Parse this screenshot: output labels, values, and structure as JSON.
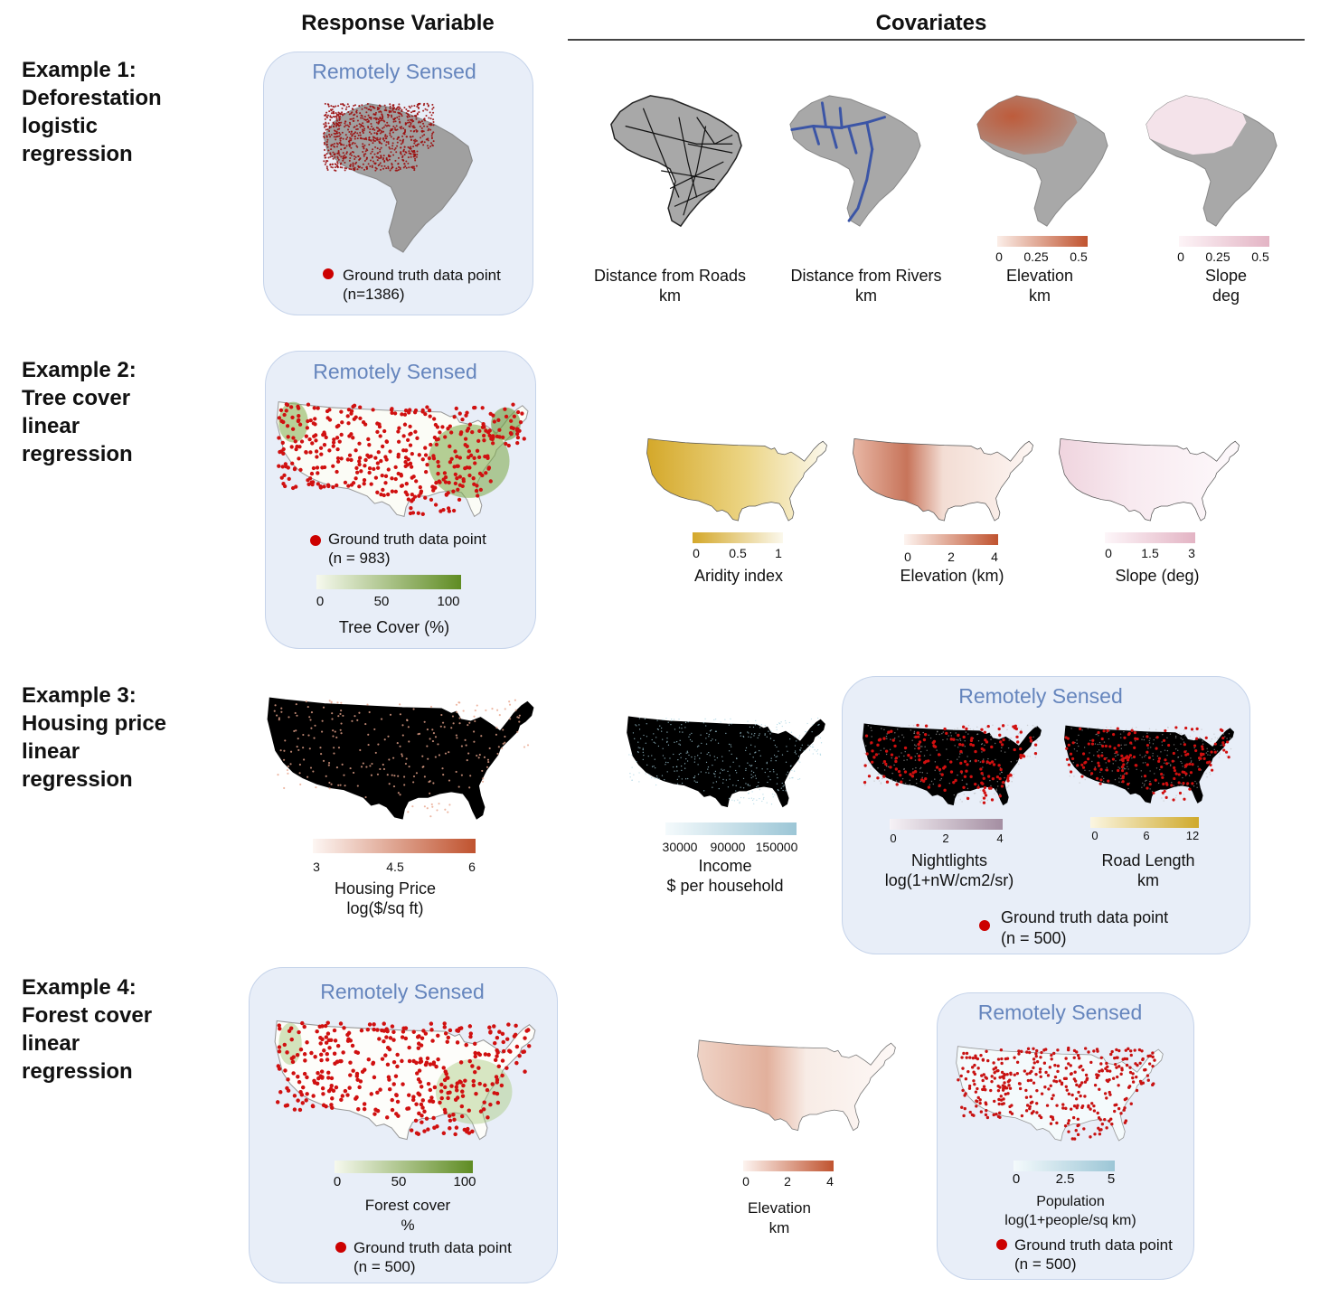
{
  "headers": {
    "response": "Response Variable",
    "covariates": "Covariates"
  },
  "remote_label": "Remotely Sensed",
  "examples": {
    "ex1": {
      "title": [
        "Example 1:",
        "Deforestation",
        "logistic",
        "regression"
      ],
      "ground_truth": {
        "label": "Ground truth data point",
        "n": "(n=1386)"
      },
      "covariates": {
        "roads": {
          "label": "Distance from Roads",
          "unit": "km"
        },
        "rivers": {
          "label": "Distance from Rivers",
          "unit": "km"
        },
        "elevation": {
          "label": "Elevation",
          "unit": "km",
          "ticks": [
            "0",
            "0.25",
            "0.5"
          ],
          "color": "#c0532f"
        },
        "slope": {
          "label": "Slope",
          "unit": "deg",
          "ticks": [
            "0",
            "0.25",
            "0.5"
          ],
          "color": "#e3b4c4"
        }
      }
    },
    "ex2": {
      "title": [
        "Example 2:",
        "Tree cover",
        "linear",
        "regression"
      ],
      "ground_truth": {
        "label": "Ground truth data point",
        "n": "(n = 983)"
      },
      "response_scale": {
        "label": "Tree Cover (%)",
        "ticks": [
          "0",
          "50",
          "100"
        ],
        "color": "#5f8c23"
      },
      "covariates": {
        "aridity": {
          "label": "Aridity index",
          "ticks": [
            "0",
            "0.5",
            "1"
          ],
          "color": "#d4a82a"
        },
        "elevation": {
          "label": "Elevation (km)",
          "ticks": [
            "0",
            "2",
            "4"
          ],
          "color": "#c0532f"
        },
        "slope": {
          "label": "Slope (deg)",
          "ticks": [
            "0",
            "1.5",
            "3"
          ],
          "color": "#e3b4c4"
        }
      }
    },
    "ex3": {
      "title": [
        "Example 3:",
        "Housing price",
        "linear",
        "regression"
      ],
      "response_scale": {
        "label": "Housing Price",
        "unit": "log($/sq ft)",
        "ticks": [
          "3",
          "4.5",
          "6"
        ],
        "color": "#c0532f"
      },
      "covariates": {
        "income": {
          "label": "Income",
          "unit": "$ per household",
          "ticks": [
            "30000",
            "90000",
            "150000"
          ],
          "color": "#9cc6d6"
        },
        "nightlights": {
          "label": "Nightlights",
          "unit": "log(1+nW/cm2/sr)",
          "ticks": [
            "0",
            "2",
            "4"
          ],
          "color": "#a48ea2"
        },
        "roads": {
          "label": "Road Length",
          "unit": "km",
          "ticks": [
            "0",
            "6",
            "12"
          ],
          "color": "#cfa92a"
        }
      },
      "ground_truth": {
        "label": "Ground truth data point",
        "n": "(n = 500)"
      }
    },
    "ex4": {
      "title": [
        "Example 4:",
        "Forest cover",
        "linear",
        "regression"
      ],
      "response_scale": {
        "label": "Forest cover",
        "unit": "%",
        "ticks": [
          "0",
          "50",
          "100"
        ],
        "color": "#5f8c23"
      },
      "ground_truth": {
        "label": "Ground truth data point",
        "n": "(n = 500)"
      },
      "covariates": {
        "elevation": {
          "label": "Elevation",
          "unit": "km",
          "ticks": [
            "0",
            "2",
            "4"
          ],
          "color": "#c0532f"
        },
        "population": {
          "label": "Population",
          "unit": "log(1+people/sq km)",
          "ticks": [
            "0",
            "2.5",
            "5"
          ],
          "color": "#9cc6d6"
        }
      },
      "ground_truth_2": {
        "label": "Ground truth data point",
        "n": "(n = 500)"
      }
    }
  }
}
